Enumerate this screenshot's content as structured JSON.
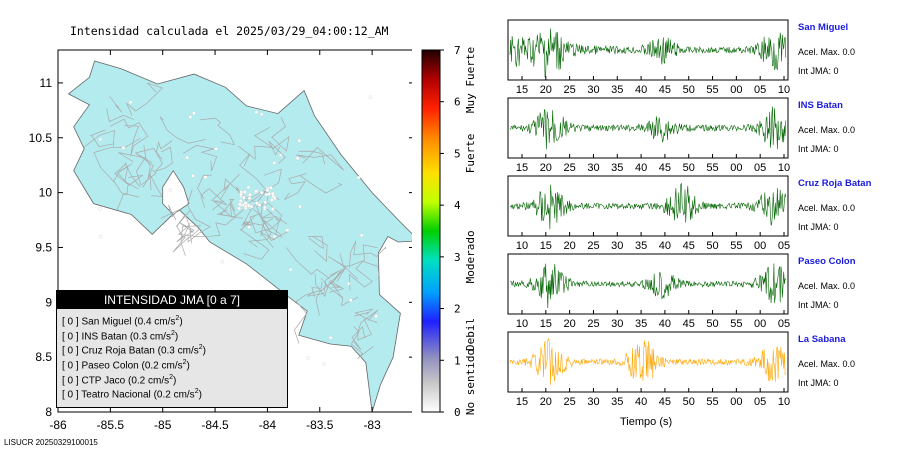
{
  "map": {
    "title": "Intensidad calculada el 2025/03/29_04:00:12_AM",
    "y_ticks": [
      "11",
      "10.5",
      "10",
      "9.5",
      "9",
      "8.5",
      "8"
    ],
    "x_ticks": [
      "-86",
      "-85.5",
      "-85",
      "-84.5",
      "-84",
      "-83.5",
      "-83"
    ],
    "land_color": "#b3ebef",
    "road_color": "#aaaaaa"
  },
  "colorbar": {
    "ticks": [
      "7",
      "6",
      "5",
      "4",
      "3",
      "2",
      "1",
      "0"
    ],
    "labels": [
      "Muy Fuerte",
      "Fuerte",
      "Moderado",
      "Debil",
      "No sentido"
    ]
  },
  "legend": {
    "header": "INTENSIDAD JMA [0 a 7]",
    "rows": [
      {
        "level": "[ 0 ]",
        "name": "San Miguel",
        "value": "(0.4 cm/s",
        "sup": "2",
        "close": ")"
      },
      {
        "level": "[ 0 ]",
        "name": "INS Batan",
        "value": "(0.3 cm/s",
        "sup": "2",
        "close": ")"
      },
      {
        "level": "[ 0 ]",
        "name": "Cruz Roja Batan",
        "value": "(0.3 cm/s",
        "sup": "2",
        "close": ")"
      },
      {
        "level": "[ 0 ]",
        "name": "Paseo Colon",
        "value": "(0.2 cm/s",
        "sup": "2",
        "close": ")"
      },
      {
        "level": "[ 0 ]",
        "name": "CTP Jaco",
        "value": "(0.2 cm/s",
        "sup": "2",
        "close": ")"
      },
      {
        "level": "[ 0 ]",
        "name": "Teatro Nacional",
        "value": "(0.2 cm/s",
        "sup": "2",
        "close": ")"
      }
    ]
  },
  "stations": [
    {
      "name": "San Miguel",
      "accel": "Acel. Max. 0.0",
      "int": "Int JMA: 0",
      "ticks": [
        "15",
        "20",
        "25",
        "30",
        "35",
        "40",
        "45",
        "50",
        "55",
        "00",
        "05",
        "10"
      ],
      "color": "#006400"
    },
    {
      "name": "INS Batan",
      "accel": "Acel. Max. 0.0",
      "int": "Int JMA: 0",
      "ticks": [
        "15",
        "20",
        "25",
        "30",
        "35",
        "40",
        "45",
        "50",
        "55",
        "00",
        "05",
        "10"
      ],
      "color": "#006400"
    },
    {
      "name": "Cruz Roja Batan",
      "accel": "Acel. Max. 0.0",
      "int": "Int JMA: 0",
      "ticks": [
        "10",
        "15",
        "20",
        "25",
        "30",
        "35",
        "40",
        "45",
        "50",
        "55",
        "00",
        "05"
      ],
      "color": "#006400"
    },
    {
      "name": "Paseo Colon",
      "accel": "Acel. Max. 0.0",
      "int": "Int JMA: 0",
      "ticks": [
        "10",
        "15",
        "20",
        "25",
        "30",
        "35",
        "40",
        "45",
        "50",
        "55",
        "00",
        "05"
      ],
      "color": "#006400"
    },
    {
      "name": "La Sabana",
      "accel": "Acel. Max. 0.0",
      "int": "Int JMA: 0",
      "ticks": [
        "15",
        "20",
        "25",
        "30",
        "35",
        "40",
        "45",
        "50",
        "55",
        "00",
        "05",
        "10"
      ],
      "color": "#ffa500"
    }
  ],
  "time_axis_label": "Tiempo (s)",
  "footer_id": "LISUCR 20250329100015"
}
